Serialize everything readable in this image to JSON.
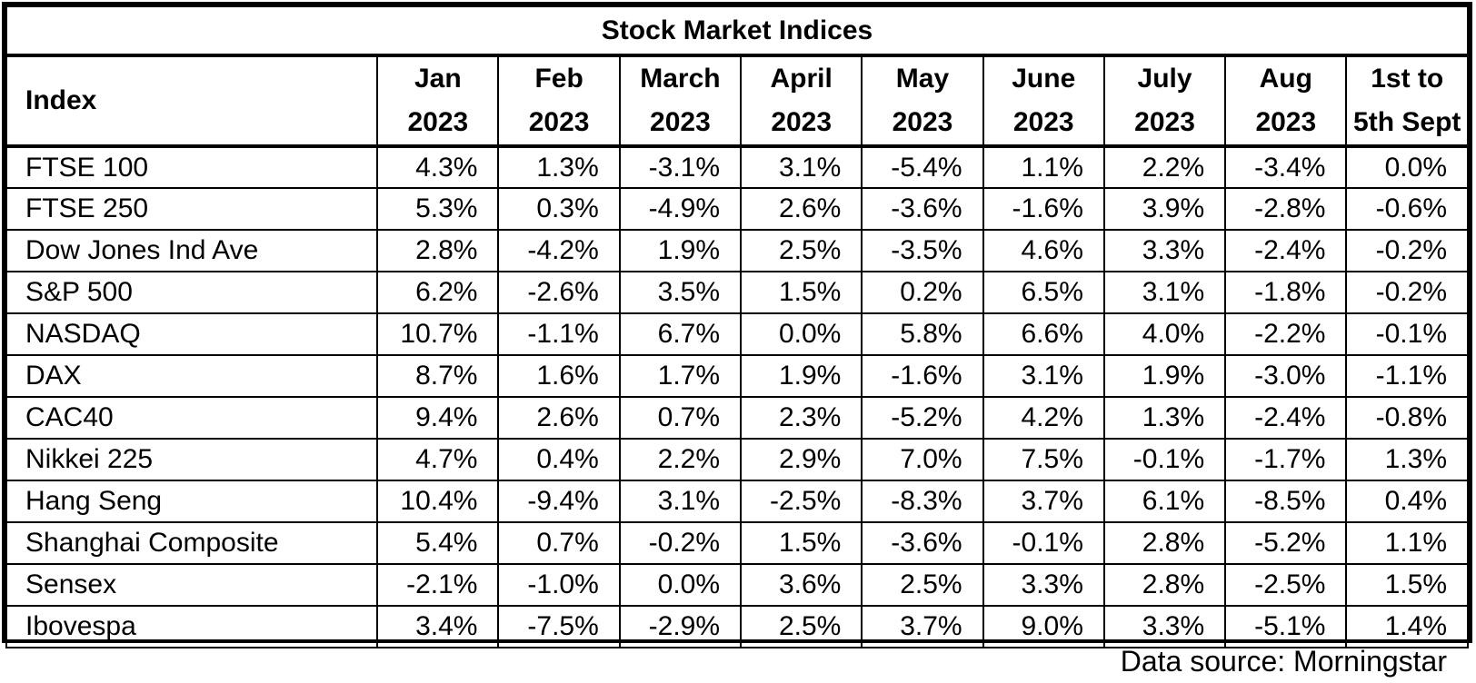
{
  "chart_data": {
    "type": "table",
    "title": "Stock Market Indices",
    "row_header_label": "Index",
    "columns": [
      {
        "line1": "Jan",
        "line2": "2023"
      },
      {
        "line1": "Feb",
        "line2": "2023"
      },
      {
        "line1": "March",
        "line2": "2023"
      },
      {
        "line1": "April",
        "line2": "2023"
      },
      {
        "line1": "May",
        "line2": "2023"
      },
      {
        "line1": "June",
        "line2": "2023"
      },
      {
        "line1": "July",
        "line2": "2023"
      },
      {
        "line1": "Aug",
        "line2": "2023"
      },
      {
        "line1": "1st to",
        "line2": "5th Sept"
      }
    ],
    "rows": [
      {
        "name": "FTSE 100",
        "values": [
          "4.3%",
          "1.3%",
          "-3.1%",
          "3.1%",
          "-5.4%",
          "1.1%",
          "2.2%",
          "-3.4%",
          "0.0%"
        ]
      },
      {
        "name": "FTSE 250",
        "values": [
          "5.3%",
          "0.3%",
          "-4.9%",
          "2.6%",
          "-3.6%",
          "-1.6%",
          "3.9%",
          "-2.8%",
          "-0.6%"
        ]
      },
      {
        "name": "Dow Jones Ind Ave",
        "values": [
          "2.8%",
          "-4.2%",
          "1.9%",
          "2.5%",
          "-3.5%",
          "4.6%",
          "3.3%",
          "-2.4%",
          "-0.2%"
        ]
      },
      {
        "name": "S&P 500",
        "values": [
          "6.2%",
          "-2.6%",
          "3.5%",
          "1.5%",
          "0.2%",
          "6.5%",
          "3.1%",
          "-1.8%",
          "-0.2%"
        ]
      },
      {
        "name": "NASDAQ",
        "values": [
          "10.7%",
          "-1.1%",
          "6.7%",
          "0.0%",
          "5.8%",
          "6.6%",
          "4.0%",
          "-2.2%",
          "-0.1%"
        ]
      },
      {
        "name": "DAX",
        "values": [
          "8.7%",
          "1.6%",
          "1.7%",
          "1.9%",
          "-1.6%",
          "3.1%",
          "1.9%",
          "-3.0%",
          "-1.1%"
        ]
      },
      {
        "name": "CAC40",
        "values": [
          "9.4%",
          "2.6%",
          "0.7%",
          "2.3%",
          "-5.2%",
          "4.2%",
          "1.3%",
          "-2.4%",
          "-0.8%"
        ]
      },
      {
        "name": "Nikkei 225",
        "values": [
          "4.7%",
          "0.4%",
          "2.2%",
          "2.9%",
          "7.0%",
          "7.5%",
          "-0.1%",
          "-1.7%",
          "1.3%"
        ]
      },
      {
        "name": "Hang Seng",
        "values": [
          "10.4%",
          "-9.4%",
          "3.1%",
          "-2.5%",
          "-8.3%",
          "3.7%",
          "6.1%",
          "-8.5%",
          "0.4%"
        ]
      },
      {
        "name": "Shanghai Composite",
        "values": [
          "5.4%",
          "0.7%",
          "-0.2%",
          "1.5%",
          "-3.6%",
          "-0.1%",
          "2.8%",
          "-5.2%",
          "1.1%"
        ]
      },
      {
        "name": "Sensex",
        "values": [
          "-2.1%",
          "-1.0%",
          "0.0%",
          "3.6%",
          "2.5%",
          "3.3%",
          "2.8%",
          "-2.5%",
          "1.5%"
        ]
      },
      {
        "name": "Ibovespa",
        "values": [
          "3.4%",
          "-7.5%",
          "-2.9%",
          "2.5%",
          "3.7%",
          "9.0%",
          "3.3%",
          "-5.1%",
          "1.4%"
        ]
      }
    ],
    "source": "Data source: Morningstar"
  }
}
